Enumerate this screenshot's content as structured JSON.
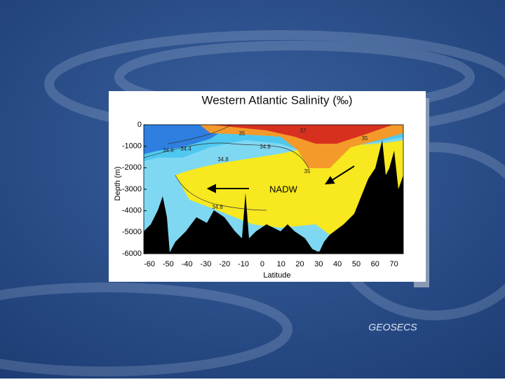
{
  "chart_data": {
    "type": "contour",
    "title": "Western Atlantic Salinity (‰)",
    "xlabel": "Latitude",
    "ylabel": "Depth (m)",
    "xlim": [
      -63,
      75
    ],
    "ylim": [
      -6000,
      0
    ],
    "xticks": [
      -60,
      -50,
      -40,
      -30,
      -20,
      -10,
      0,
      10,
      20,
      30,
      40,
      50,
      60,
      70
    ],
    "yticks": [
      0,
      -1000,
      -2000,
      -3000,
      -4000,
      -5000,
      -6000
    ],
    "contour_labels": [
      "35",
      "34.6",
      "34.4",
      "34.8",
      "34.8",
      "35",
      "35",
      "37",
      "34.8"
    ],
    "annotation": "NADW"
  },
  "credit": "GEOSECS"
}
